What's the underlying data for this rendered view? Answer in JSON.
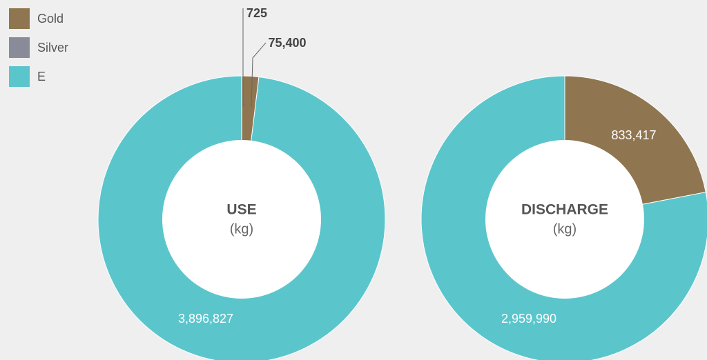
{
  "chart_data": [
    {
      "type": "donut",
      "title": "USE",
      "subtitle": "(kg)",
      "categories": [
        "Gold",
        "Silver",
        "E"
      ],
      "colors": [
        "#8f7650",
        "#898c98",
        "#5bc5cc"
      ],
      "values": [
        75400,
        725,
        3896827
      ],
      "value_labels": [
        "75,400",
        "725",
        "3,896,827"
      ]
    },
    {
      "type": "donut",
      "title": "DISCHARGE",
      "subtitle": "(kg)",
      "categories": [
        "Gold",
        "Silver",
        "E"
      ],
      "colors": [
        "#8f7650",
        "#898c98",
        "#5bc5cc"
      ],
      "values": [
        833417,
        null,
        2959990
      ],
      "value_labels": [
        "833,417",
        null,
        "2,959,990"
      ]
    }
  ]
}
